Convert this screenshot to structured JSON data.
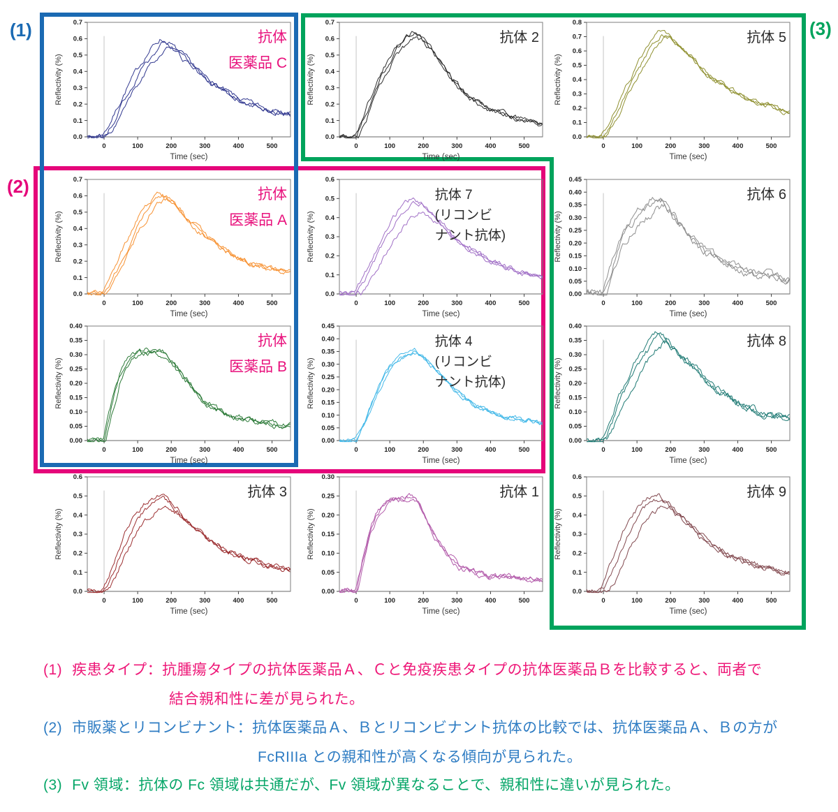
{
  "figure": {
    "groups": [
      {
        "label": "(1)",
        "color": "#1b6ab3"
      },
      {
        "label": "(2)",
        "color": "#e5067a"
      },
      {
        "label": "(3)",
        "color": "#00a35c"
      }
    ]
  },
  "annotations": [
    {
      "marker": "(1)",
      "color": "#ee1878",
      "line1": "疾患タイプ：抗腫瘍タイプの抗体医薬品Ａ、Ｃと免疫疾患タイプの抗体医薬品Ｂを比較すると、両者で",
      "line2": "結合親和性に差が見られた。"
    },
    {
      "marker": "(2)",
      "color": "#2e7cc3",
      "line1": "市販薬とリコンビナント：抗体医薬品Ａ、Ｂとリコンビナント抗体の比較では、抗体医薬品Ａ、Ｂの方が",
      "line2": "FcRIIIa との親和性が高くなる傾向が見られた。"
    },
    {
      "marker": "(3)",
      "color": "#06a668",
      "line1": "Fv 領域：抗体の Fc 領域は共通だが、Fv 領域が異なることで、親和性に違いが見られた。",
      "line2": ""
    }
  ],
  "chart_data": [
    {
      "type": "line",
      "id": "iyakuhin-c",
      "title": {
        "lines": [
          "抗体",
          "医薬品 C"
        ],
        "color": "#e8117c",
        "align": "end"
      },
      "xlabel": "Time (sec)",
      "ylabel": "Reflectivity (%)",
      "xlim": [
        -50,
        555
      ],
      "ylim": [
        0,
        0.7
      ],
      "ytick_step": 0.1,
      "xticks": [
        0,
        100,
        200,
        300,
        400,
        500
      ],
      "curve_color": "#31388f",
      "n_replicates": 3,
      "noise": 0.011,
      "x": [
        -50,
        0,
        25,
        50,
        75,
        100,
        125,
        150,
        175,
        200,
        250,
        300,
        350,
        400,
        450,
        500,
        550
      ],
      "y": [
        0,
        0,
        0.08,
        0.18,
        0.28,
        0.37,
        0.45,
        0.52,
        0.57,
        0.55,
        0.46,
        0.36,
        0.29,
        0.23,
        0.19,
        0.16,
        0.14
      ],
      "replicates": {
        "scales": [
          1.05,
          1.0,
          0.94
        ],
        "tshifts": [
          -8,
          0,
          10
        ]
      }
    },
    {
      "type": "line",
      "id": "kotai-2",
      "title": {
        "lines": [
          "抗体 2"
        ],
        "color": "#2b2b2b",
        "align": "end"
      },
      "xlabel": "Time (sec)",
      "ylabel": "Reflectivity (%)",
      "xlim": [
        -50,
        555
      ],
      "ylim": [
        0,
        0.7
      ],
      "ytick_step": 0.1,
      "xticks": [
        0,
        100,
        200,
        300,
        400,
        500
      ],
      "curve_color": "#2e2e2e",
      "n_replicates": 3,
      "noise": 0.011,
      "x": [
        -50,
        0,
        25,
        50,
        75,
        100,
        125,
        150,
        175,
        200,
        250,
        300,
        350,
        400,
        450,
        500,
        550
      ],
      "y": [
        0,
        0,
        0.12,
        0.25,
        0.37,
        0.47,
        0.55,
        0.61,
        0.64,
        0.61,
        0.46,
        0.32,
        0.23,
        0.17,
        0.13,
        0.1,
        0.08
      ],
      "replicates": {
        "scales": [
          1.0,
          0.99,
          0.95
        ],
        "tshifts": [
          -5,
          0,
          7
        ]
      }
    },
    {
      "type": "line",
      "id": "kotai-5",
      "title": {
        "lines": [
          "抗体 5"
        ],
        "color": "#2b2b2b",
        "align": "end"
      },
      "xlabel": "Time (sec)",
      "ylabel": "Reflectivity (%)",
      "xlim": [
        -50,
        555
      ],
      "ylim": [
        0,
        0.8
      ],
      "ytick_step": 0.1,
      "xticks": [
        0,
        100,
        200,
        300,
        400,
        500
      ],
      "curve_color": "#8f9030",
      "n_replicates": 3,
      "noise": 0.011,
      "x": [
        -50,
        0,
        25,
        50,
        75,
        100,
        125,
        150,
        175,
        200,
        250,
        300,
        350,
        400,
        450,
        500,
        550
      ],
      "y": [
        0,
        0,
        0.1,
        0.22,
        0.34,
        0.45,
        0.56,
        0.65,
        0.72,
        0.69,
        0.58,
        0.46,
        0.37,
        0.3,
        0.25,
        0.21,
        0.17
      ],
      "replicates": {
        "scales": [
          1.02,
          1.0,
          0.97
        ],
        "tshifts": [
          -8,
          0,
          8
        ]
      }
    },
    {
      "type": "line",
      "id": "iyakuhin-a",
      "title": {
        "lines": [
          "抗体",
          "医薬品 A"
        ],
        "color": "#e8117c",
        "align": "end"
      },
      "xlabel": "Time (sec)",
      "ylabel": "Reflectivity (%)",
      "xlim": [
        -50,
        555
      ],
      "ylim": [
        0,
        0.7
      ],
      "ytick_step": 0.1,
      "xticks": [
        0,
        100,
        200,
        300,
        400,
        500
      ],
      "curve_color": "#f79233",
      "n_replicates": 3,
      "noise": 0.011,
      "x": [
        -50,
        0,
        25,
        50,
        75,
        100,
        125,
        150,
        175,
        200,
        250,
        300,
        350,
        400,
        450,
        500,
        550
      ],
      "y": [
        0,
        0,
        0.09,
        0.2,
        0.31,
        0.42,
        0.5,
        0.56,
        0.6,
        0.57,
        0.46,
        0.36,
        0.28,
        0.22,
        0.18,
        0.15,
        0.13
      ],
      "replicates": {
        "scales": [
          1.03,
          1.0,
          0.96
        ],
        "tshifts": [
          -9,
          0,
          9
        ]
      }
    },
    {
      "type": "line",
      "id": "kotai-7",
      "title": {
        "lines": [
          "抗体 7",
          "(リコンビ",
          "ナント抗体)"
        ],
        "color": "#2b2b2b",
        "align": "start"
      },
      "xlabel": "Time (sec)",
      "ylabel": "Reflectivity (%)",
      "xlim": [
        -50,
        555
      ],
      "ylim": [
        0,
        0.6
      ],
      "ytick_step": 0.1,
      "xticks": [
        0,
        100,
        200,
        300,
        400,
        500
      ],
      "curve_color": "#a06fc6",
      "n_replicates": 3,
      "noise": 0.009,
      "x": [
        -50,
        0,
        25,
        50,
        75,
        100,
        125,
        150,
        175,
        200,
        250,
        300,
        350,
        400,
        450,
        500,
        550
      ],
      "y": [
        0,
        0,
        0.07,
        0.15,
        0.24,
        0.32,
        0.39,
        0.45,
        0.48,
        0.46,
        0.38,
        0.29,
        0.23,
        0.18,
        0.14,
        0.11,
        0.09
      ],
      "replicates": {
        "scales": [
          1.04,
          1.0,
          0.9
        ],
        "tshifts": [
          -10,
          0,
          14
        ]
      }
    },
    {
      "type": "line",
      "id": "kotai-6",
      "title": {
        "lines": [
          "抗体 6"
        ],
        "color": "#2b2b2b",
        "align": "end"
      },
      "xlabel": "Time (sec)",
      "ylabel": "Reflectivity (%)",
      "xlim": [
        -50,
        555
      ],
      "ylim": [
        0,
        0.45
      ],
      "ytick_step": 0.05,
      "xticks": [
        0,
        100,
        200,
        300,
        400,
        500
      ],
      "curve_color": "#8e8e8e",
      "n_replicates": 3,
      "noise": 0.01,
      "x": [
        -50,
        0,
        25,
        50,
        75,
        100,
        125,
        150,
        175,
        200,
        250,
        300,
        350,
        400,
        450,
        500,
        550
      ],
      "y": [
        0,
        0,
        0.1,
        0.2,
        0.26,
        0.3,
        0.33,
        0.36,
        0.37,
        0.33,
        0.23,
        0.17,
        0.13,
        0.1,
        0.08,
        0.07,
        0.05
      ],
      "replicates": {
        "scales": [
          1.05,
          1.0,
          0.92
        ],
        "tshifts": [
          -6,
          0,
          8
        ]
      }
    },
    {
      "type": "line",
      "id": "iyakuhin-b",
      "title": {
        "lines": [
          "抗体",
          "医薬品 B"
        ],
        "color": "#e8117c",
        "align": "end"
      },
      "xlabel": "Time (sec)",
      "ylabel": "Reflectivity (%)",
      "xlim": [
        -50,
        555
      ],
      "ylim": [
        0,
        0.4
      ],
      "ytick_step": 0.05,
      "xticks": [
        0,
        100,
        200,
        300,
        400,
        500
      ],
      "curve_color": "#2c7a38",
      "n_replicates": 3,
      "noise": 0.007,
      "x": [
        -50,
        0,
        20,
        40,
        60,
        80,
        100,
        130,
        160,
        180,
        200,
        230,
        260,
        300,
        350,
        400,
        450,
        500,
        550
      ],
      "y": [
        0,
        0,
        0.1,
        0.2,
        0.26,
        0.29,
        0.3,
        0.31,
        0.31,
        0.31,
        0.28,
        0.23,
        0.19,
        0.13,
        0.1,
        0.08,
        0.07,
        0.06,
        0.05
      ],
      "replicates": {
        "scales": [
          1.02,
          1.0,
          0.98
        ],
        "tshifts": [
          -4,
          0,
          5
        ]
      }
    },
    {
      "type": "line",
      "id": "kotai-4",
      "title": {
        "lines": [
          "抗体 4",
          "(リコンビ",
          "ナント抗体)"
        ],
        "color": "#2b2b2b",
        "align": "start"
      },
      "xlabel": "Time (sec)",
      "ylabel": "Reflectivity (%)",
      "xlim": [
        -50,
        555
      ],
      "ylim": [
        0,
        0.45
      ],
      "ytick_step": 0.05,
      "xticks": [
        0,
        100,
        200,
        300,
        400,
        500
      ],
      "curve_color": "#45b9e8",
      "n_replicates": 3,
      "noise": 0.006,
      "x": [
        -50,
        0,
        25,
        50,
        75,
        100,
        125,
        150,
        175,
        200,
        250,
        300,
        350,
        400,
        450,
        500,
        550
      ],
      "y": [
        0,
        0,
        0.07,
        0.16,
        0.23,
        0.29,
        0.32,
        0.34,
        0.35,
        0.33,
        0.26,
        0.19,
        0.14,
        0.11,
        0.09,
        0.08,
        0.07
      ],
      "replicates": {
        "scales": [
          1.01,
          1.0,
          0.99
        ],
        "tshifts": [
          -2,
          0,
          3
        ]
      }
    },
    {
      "type": "line",
      "id": "kotai-8",
      "title": {
        "lines": [
          "抗体 8"
        ],
        "color": "#2b2b2b",
        "align": "end"
      },
      "xlabel": "Time (sec)",
      "ylabel": "Reflectivity (%)",
      "xlim": [
        -50,
        555
      ],
      "ylim": [
        0,
        0.4
      ],
      "ytick_step": 0.05,
      "xticks": [
        0,
        100,
        200,
        300,
        400,
        500
      ],
      "curve_color": "#1f7a74",
      "n_replicates": 3,
      "noise": 0.008,
      "x": [
        -50,
        0,
        25,
        50,
        75,
        100,
        125,
        150,
        175,
        200,
        250,
        300,
        350,
        400,
        450,
        500,
        550
      ],
      "y": [
        0,
        0,
        0.06,
        0.14,
        0.2,
        0.26,
        0.3,
        0.34,
        0.37,
        0.34,
        0.28,
        0.22,
        0.17,
        0.13,
        0.11,
        0.09,
        0.08
      ],
      "replicates": {
        "scales": [
          1.02,
          1.0,
          0.94
        ],
        "tshifts": [
          -9,
          0,
          10
        ]
      }
    },
    {
      "type": "line",
      "id": "kotai-3",
      "title": {
        "lines": [
          "抗体 3"
        ],
        "color": "#2b2b2b",
        "align": "end"
      },
      "xlabel": "Time (sec)",
      "ylabel": "Reflectivity (%)",
      "xlim": [
        -50,
        555
      ],
      "ylim": [
        0,
        0.6
      ],
      "ytick_step": 0.1,
      "xticks": [
        0,
        100,
        200,
        300,
        400,
        500
      ],
      "curve_color": "#9c2f31",
      "n_replicates": 3,
      "noise": 0.01,
      "x": [
        -50,
        0,
        25,
        50,
        75,
        100,
        125,
        150,
        175,
        200,
        250,
        300,
        350,
        400,
        450,
        500,
        550
      ],
      "y": [
        0,
        0,
        0.09,
        0.2,
        0.3,
        0.38,
        0.43,
        0.47,
        0.49,
        0.46,
        0.37,
        0.29,
        0.23,
        0.19,
        0.16,
        0.13,
        0.11
      ],
      "replicates": {
        "scales": [
          1.04,
          1.0,
          0.92
        ],
        "tshifts": [
          -10,
          0,
          12
        ]
      }
    },
    {
      "type": "line",
      "id": "kotai-1",
      "title": {
        "lines": [
          "抗体 1"
        ],
        "color": "#2b2b2b",
        "align": "end"
      },
      "xlabel": "Time (sec)",
      "ylabel": "Reflectivity (%)",
      "xlim": [
        -50,
        555
      ],
      "ylim": [
        0,
        0.3
      ],
      "ytick_step": 0.05,
      "xticks": [
        0,
        100,
        200,
        300,
        400,
        500
      ],
      "curve_color": "#b35cab",
      "n_replicates": 3,
      "noise": 0.005,
      "x": [
        -50,
        0,
        20,
        40,
        60,
        80,
        100,
        130,
        160,
        180,
        200,
        220,
        250,
        280,
        310,
        350,
        400,
        450,
        500,
        550
      ],
      "y": [
        0,
        0,
        0.08,
        0.15,
        0.2,
        0.22,
        0.24,
        0.245,
        0.245,
        0.24,
        0.21,
        0.17,
        0.12,
        0.09,
        0.06,
        0.05,
        0.04,
        0.04,
        0.035,
        0.03
      ],
      "replicates": {
        "scales": [
          1.01,
          1.0,
          0.98
        ],
        "tshifts": [
          -3,
          0,
          4
        ]
      }
    },
    {
      "type": "line",
      "id": "kotai-9",
      "title": {
        "lines": [
          "抗体 9"
        ],
        "color": "#2b2b2b",
        "align": "end"
      },
      "xlabel": "Time (sec)",
      "ylabel": "Reflectivity (%)",
      "xlim": [
        -50,
        555
      ],
      "ylim": [
        0,
        0.6
      ],
      "ytick_step": 0.1,
      "xticks": [
        0,
        100,
        200,
        300,
        400,
        500
      ],
      "curve_color": "#82494f",
      "n_replicates": 3,
      "noise": 0.01,
      "x": [
        -50,
        0,
        25,
        50,
        75,
        100,
        125,
        150,
        175,
        200,
        250,
        300,
        350,
        400,
        450,
        500,
        550
      ],
      "y": [
        0,
        0,
        0.09,
        0.2,
        0.3,
        0.38,
        0.44,
        0.48,
        0.49,
        0.45,
        0.36,
        0.28,
        0.22,
        0.17,
        0.14,
        0.12,
        0.1
      ],
      "replicates": {
        "scales": [
          1.04,
          1.0,
          0.92
        ],
        "tshifts": [
          -15,
          0,
          18
        ]
      }
    }
  ]
}
